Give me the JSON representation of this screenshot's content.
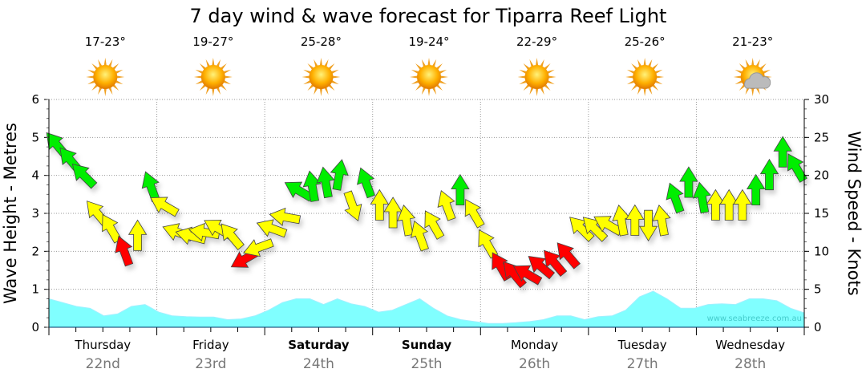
{
  "chart_data": {
    "type": "line",
    "title": "7 day wind & wave forecast for Tiparra Reef Light",
    "ylabel": "Wave Height - Metres",
    "y2label": "Wind Speed - Knots",
    "ylim": [
      0,
      6
    ],
    "y2lim": [
      0,
      30
    ],
    "yticks": [
      "0",
      "1",
      "2",
      "3",
      "4",
      "5",
      "6"
    ],
    "y2ticks": [
      "0",
      "5",
      "10",
      "15",
      "20",
      "25",
      "30"
    ],
    "grid": true,
    "watermark": "www.seabreeze.com.au",
    "days": [
      {
        "day": "Thursday",
        "date": "22nd",
        "temp": "17-23°",
        "icon": "sun-icon",
        "bold": false
      },
      {
        "day": "Friday",
        "date": "23rd",
        "temp": "19-27°",
        "icon": "sun-icon",
        "bold": false
      },
      {
        "day": "Saturday",
        "date": "24th",
        "temp": "25-28°",
        "icon": "sun-icon",
        "bold": true
      },
      {
        "day": "Sunday",
        "date": "25th",
        "temp": "19-24°",
        "icon": "sun-icon",
        "bold": true
      },
      {
        "day": "Monday",
        "date": "26th",
        "temp": "22-29°",
        "icon": "sun-icon",
        "bold": false
      },
      {
        "day": "Tuesday",
        "date": "27th",
        "temp": "25-26°",
        "icon": "sun-icon",
        "bold": false
      },
      {
        "day": "Wednesday",
        "date": "28th",
        "temp": "21-23°",
        "icon": "partly-cloudy-icon",
        "bold": false
      }
    ],
    "series": [
      {
        "name": "Wave height (m)",
        "type": "area",
        "color": "#80ffff",
        "values": [
          0.75,
          0.65,
          0.55,
          0.5,
          0.3,
          0.35,
          0.55,
          0.6,
          0.4,
          0.3,
          0.28,
          0.27,
          0.27,
          0.2,
          0.22,
          0.3,
          0.45,
          0.65,
          0.75,
          0.75,
          0.6,
          0.75,
          0.62,
          0.55,
          0.4,
          0.45,
          0.6,
          0.75,
          0.5,
          0.3,
          0.2,
          0.15,
          0.1,
          0.1,
          0.12,
          0.15,
          0.2,
          0.3,
          0.3,
          0.2,
          0.28,
          0.3,
          0.45,
          0.8,
          0.95,
          0.75,
          0.5,
          0.5,
          0.6,
          0.62,
          0.6,
          0.75,
          0.75,
          0.7,
          0.5,
          0.38
        ]
      },
      {
        "name": "Wind speed (knots)",
        "type": "arrows",
        "values": [
          24,
          22,
          20,
          15,
          13,
          10,
          12,
          18.5,
          16,
          12.5,
          12,
          12.5,
          13,
          12,
          9,
          10.5,
          13,
          14.5,
          18,
          18.5,
          19,
          20,
          16,
          19,
          16,
          15,
          14,
          12,
          13.5,
          16,
          18,
          15,
          11,
          8,
          7,
          7,
          8,
          8.5,
          9.5,
          13,
          13,
          13.5,
          14,
          14,
          13.5,
          14,
          17,
          19,
          17,
          16,
          16,
          16,
          18,
          20,
          23,
          21
        ],
        "directions": [
          -40,
          -40,
          -45,
          -40,
          -30,
          -20,
          0,
          -20,
          -60,
          -70,
          -75,
          -80,
          -60,
          -40,
          -120,
          -110,
          -70,
          -80,
          -60,
          -10,
          -10,
          10,
          160,
          -20,
          0,
          0,
          -10,
          -20,
          -30,
          -20,
          0,
          -30,
          -30,
          -30,
          -40,
          -60,
          -50,
          -40,
          -40,
          -45,
          -45,
          -60,
          -10,
          0,
          180,
          -10,
          -20,
          0,
          -10,
          0,
          0,
          0,
          0,
          0,
          0,
          -30
        ],
        "colors": {
          "low": "#ff0000",
          "mid": "#ffff00",
          "high": "#00ee00"
        }
      }
    ]
  }
}
